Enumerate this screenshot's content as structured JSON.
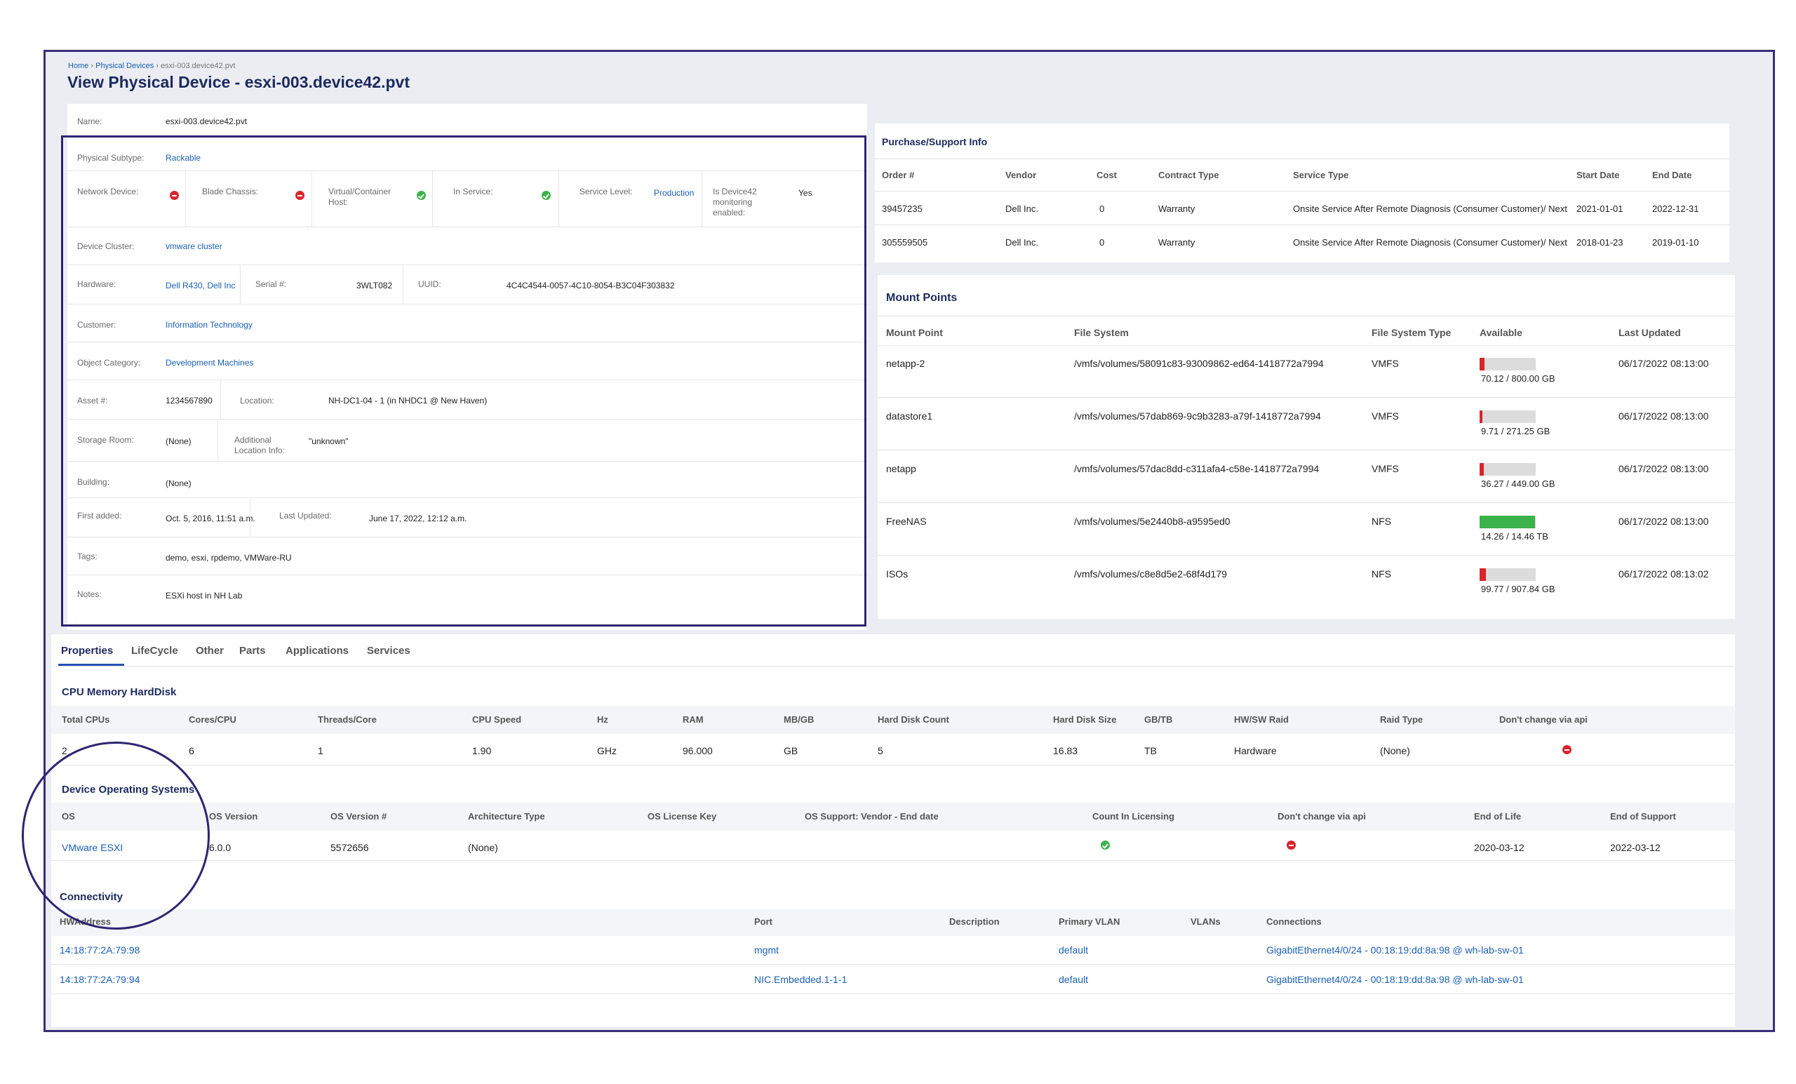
{
  "breadcrumb": {
    "home": "Home",
    "sep1": " › ",
    "devices": "Physical Devices",
    "sep2": " › ",
    "current": "esxi-003.device42.pvt"
  },
  "title": "View Physical Device - esxi-003.device42.pvt",
  "info": {
    "name_label": "Name:",
    "name": "esxi-003.device42.pvt",
    "subtype_label": "Physical Subtype:",
    "subtype": "Rackable",
    "network_label": "Network Device:",
    "blade_label": "Blade Chassis:",
    "virtual_label": "Virtual/Container Host:",
    "inservice_label": "In Service:",
    "service_level_label": "Service Level:",
    "service_level": "Production",
    "monitoring_label": "Is Device42 monitoring enabled:",
    "monitoring": "Yes",
    "cluster_label": "Device Cluster:",
    "cluster": "vmware cluster",
    "hardware_label": "Hardware:",
    "hardware": "Dell R430, Dell Inc",
    "serial_label": "Serial #:",
    "serial": "3WLT082",
    "uuid_label": "UUID:",
    "uuid": "4C4C4544-0057-4C10-8054-B3C04F303832",
    "customer_label": "Customer:",
    "customer": "Information Technology",
    "category_label": "Object Category:",
    "category": "Development Machines",
    "asset_label": "Asset #:",
    "asset": "1234567890",
    "location_label": "Location:",
    "location": "NH-DC1-04 - 1 (in NHDC1 @ New Haven)",
    "storage_label": "Storage Room:",
    "storage": "(None)",
    "addl_label": "Additional Location Info:",
    "addl": "\"unknown\"",
    "building_label": "Building:",
    "building": "(None)",
    "first_label": "First added:",
    "first": "Oct. 5, 2016, 11:51 a.m.",
    "updated_label": "Last Updated:",
    "updated": "June 17, 2022, 12:12 a.m.",
    "tags_label": "Tags:",
    "tags": "demo, esxi, rpdemo, VMWare-RU",
    "notes_label": "Notes:",
    "notes": "ESXi host in NH Lab"
  },
  "purchase": {
    "title": "Purchase/Support Info",
    "headers": [
      "Order #",
      "Vendor",
      "Cost",
      "Contract Type",
      "Service Type",
      "Start Date",
      "End Date"
    ],
    "rows": [
      [
        "39457235",
        "Dell Inc.",
        "0",
        "Warranty",
        "Onsite Service After Remote Diagnosis (Consumer Customer)/ Next",
        "2021-01-01",
        "2022-12-31"
      ],
      [
        "305559505",
        "Dell Inc.",
        "0",
        "Warranty",
        "Onsite Service After Remote Diagnosis (Consumer Customer)/ Next",
        "2018-01-23",
        "2019-01-10"
      ]
    ]
  },
  "mount": {
    "title": "Mount Points",
    "headers": [
      "Mount Point",
      "File System",
      "File System Type",
      "Available",
      "Last Updated"
    ],
    "rows": [
      {
        "mp": "netapp-2",
        "fs": "/vmfs/volumes/58091c83-93009862-ed64-1418772a7994",
        "type": "VMFS",
        "avail": "70.12 / 800.00 GB",
        "frac": 0.0877,
        "updated": "06/17/2022 08:13:00"
      },
      {
        "mp": "datastore1",
        "fs": "/vmfs/volumes/57dab869-9c9b3283-a79f-1418772a7994",
        "type": "VMFS",
        "avail": "9.71 / 271.25 GB",
        "frac": 0.0358,
        "updated": "06/17/2022 08:13:00"
      },
      {
        "mp": "netapp",
        "fs": "/vmfs/volumes/57dac8dd-c311afa4-c58e-1418772a7994",
        "type": "VMFS",
        "avail": "36.27 / 449.00 GB",
        "frac": 0.0808,
        "updated": "06/17/2022 08:13:00"
      },
      {
        "mp": "FreeNAS",
        "fs": "/vmfs/volumes/5e2440b8-a9595ed0",
        "type": "NFS",
        "avail": "14.26 / 14.46 TB",
        "frac": 0.986,
        "updated": "06/17/2022 08:13:00"
      },
      {
        "mp": "ISOs",
        "fs": "/vmfs/volumes/c8e8d5e2-68f4d179",
        "type": "NFS",
        "avail": "99.77 / 907.84 GB",
        "frac": 0.1099,
        "updated": "06/17/2022 08:13:02"
      }
    ],
    "colors": {
      "low": "#d8252b",
      "high": "#3cb34a",
      "track": "#dcdcdc"
    }
  },
  "tabs": [
    "Properties",
    "LifeCycle",
    "Other",
    "Parts",
    "Applications",
    "Services"
  ],
  "cpu": {
    "title": "CPU Memory HardDisk",
    "headers": [
      "Total CPUs",
      "Cores/CPU",
      "Threads/Core",
      "CPU Speed",
      "Hz",
      "RAM",
      "MB/GB",
      "Hard Disk Count",
      "Hard Disk Size",
      "GB/TB",
      "HW/SW Raid",
      "Raid Type",
      "Don't change via api"
    ],
    "values": [
      "2",
      "6",
      "1",
      "1.90",
      "GHz",
      "96.000",
      "GB",
      "5",
      "16.83",
      "TB",
      "Hardware",
      "(None)",
      ""
    ]
  },
  "os": {
    "title": "Device Operating Systems",
    "headers": [
      "OS",
      "OS Version",
      "OS Version #",
      "Architecture Type",
      "OS License Key",
      "OS Support: Vendor - End date",
      "Count In Licensing",
      "Don't change via api",
      "End of Life",
      "End of Support"
    ],
    "values": [
      "VMware ESXI",
      "6.0.0",
      "5572656",
      "(None)",
      "",
      "",
      "",
      "",
      "2020-03-12",
      "2022-03-12"
    ]
  },
  "conn": {
    "title": "Connectivity",
    "headers": [
      "HWAddress",
      "Port",
      "Description",
      "Primary VLAN",
      "VLANs",
      "Connections"
    ],
    "rows": [
      [
        "14:18:77:2A:79:98",
        "mgmt",
        "",
        "default",
        "",
        "GigabitEthernet4/0/24 - 00:18:19:dd:8a:98 @ wh-lab-sw-01"
      ],
      [
        "14:18:77:2A:79:94",
        "NIC.Embedded.1-1-1",
        "",
        "default",
        "",
        "GigabitEthernet4/0/24 - 00:18:19:dd:8a:98 @ wh-lab-sw-01"
      ]
    ]
  }
}
